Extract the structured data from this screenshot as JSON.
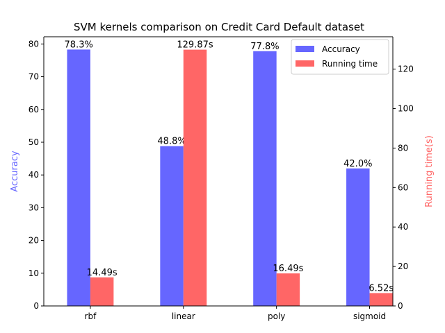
{
  "chart_data": {
    "type": "bar",
    "title": "SVM kernels comparison on Credit Card Default dataset",
    "categories": [
      "rbf",
      "linear",
      "poly",
      "sigmoid"
    ],
    "series": [
      {
        "name": "Accuracy",
        "axis": "left",
        "color": "#6666ff",
        "values": [
          78.3,
          48.8,
          77.8,
          42.0
        ],
        "labels": [
          "78.3%",
          "48.8%",
          "77.8%",
          "42.0%"
        ]
      },
      {
        "name": "Running time",
        "axis": "right",
        "color": "#ff6666",
        "values": [
          14.49,
          129.87,
          16.49,
          6.52
        ],
        "labels": [
          "14.49s",
          "129.87s",
          "16.49s",
          "6.52s"
        ]
      }
    ],
    "y_left": {
      "label": "Accuracy",
      "label_color": "#6666ff",
      "range": [
        0,
        82.2
      ],
      "ticks": [
        0,
        10,
        20,
        30,
        40,
        50,
        60,
        70,
        80
      ]
    },
    "y_right": {
      "label": "Running time(s)",
      "label_color": "#ff6666",
      "range": [
        0,
        136.4
      ],
      "ticks": [
        0,
        20,
        40,
        60,
        80,
        100,
        120
      ]
    },
    "legend": {
      "position": "top-right",
      "entries": [
        "Accuracy",
        "Running time"
      ]
    },
    "grid": false
  }
}
